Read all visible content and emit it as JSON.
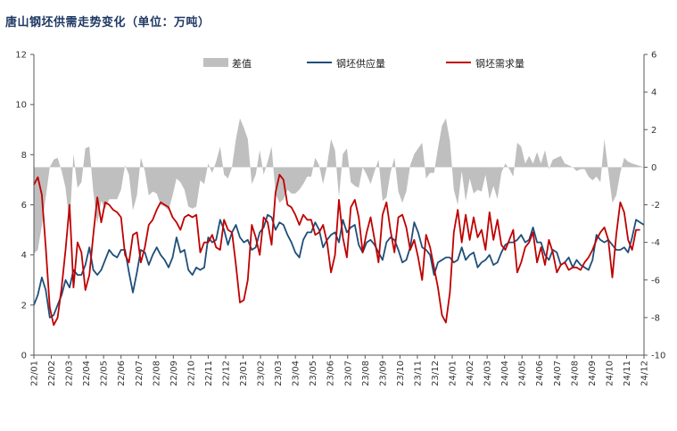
{
  "chart_data": {
    "type": "line",
    "title": "唐山钢坯供需走势变化（单位：万吨）",
    "legend": [
      "差值",
      "钢坯供应量",
      "钢坯需求量"
    ],
    "legend_position": "top",
    "colors": {
      "diff": "#bfbfbf",
      "supply": "#1f4e79",
      "demand": "#c00000"
    },
    "ylim_left": [
      0,
      12
    ],
    "yticks_left": [
      "0",
      "2",
      "4",
      "6",
      "8",
      "10",
      "12"
    ],
    "ylim_right": [
      -10,
      6
    ],
    "yticks_right": [
      "-10",
      "-8",
      "-6",
      "-4",
      "-2",
      "0",
      "2",
      "4",
      "6"
    ],
    "x_ticks": [
      "22/01",
      "22/02",
      "22/03",
      "22/04",
      "22/05",
      "22/06",
      "22/07",
      "22/08",
      "22/09",
      "22/10",
      "22/11",
      "22/12",
      "23/01",
      "23/02",
      "23/03",
      "23/04",
      "23/05",
      "23/06",
      "23/07",
      "23/08",
      "23/09",
      "23/10",
      "23/11",
      "23/12",
      "24/01",
      "24/02",
      "24/03",
      "24/04",
      "24/05",
      "24/06",
      "24/07",
      "24/08",
      "24/09",
      "24/10",
      "24/11",
      "24/12"
    ],
    "series": [
      {
        "name": "钢坯供应量",
        "axis": "left",
        "values": [
          2.0,
          2.4,
          3.1,
          2.6,
          1.5,
          1.6,
          2.0,
          2.4,
          3.0,
          2.7,
          3.4,
          3.2,
          3.2,
          3.6,
          4.3,
          3.4,
          3.2,
          3.4,
          3.8,
          4.2,
          4.0,
          3.9,
          4.2,
          4.2,
          3.3,
          2.5,
          3.3,
          4.2,
          4.1,
          3.6,
          4.0,
          4.3,
          4.0,
          3.8,
          3.5,
          3.9,
          4.7,
          4.1,
          4.2,
          3.4,
          3.2,
          3.5,
          3.4,
          3.5,
          4.7,
          4.5,
          4.6,
          5.4,
          5.0,
          4.4,
          4.9,
          5.2,
          4.7,
          4.5,
          4.6,
          4.2,
          4.3,
          4.9,
          5.1,
          5.6,
          5.5,
          5.0,
          5.3,
          5.2,
          4.8,
          4.5,
          4.1,
          3.9,
          4.6,
          4.9,
          4.9,
          5.3,
          5.0,
          4.3,
          4.6,
          4.8,
          4.9,
          4.5,
          5.4,
          4.9,
          5.1,
          5.2,
          4.4,
          4.1,
          4.5,
          4.6,
          4.4,
          4.1,
          3.8,
          4.5,
          4.7,
          4.6,
          4.2,
          3.7,
          3.8,
          4.3,
          5.3,
          4.9,
          4.3,
          4.2,
          4.0,
          3.2,
          3.7,
          3.8,
          3.9,
          3.9,
          3.7,
          3.8,
          4.3,
          3.8,
          4.0,
          4.1,
          3.5,
          3.7,
          3.8,
          4.0,
          3.6,
          3.7,
          4.1,
          4.4,
          4.5,
          4.5,
          4.6,
          4.8,
          4.5,
          4.6,
          5.1,
          4.5,
          4.5,
          4.0,
          3.8,
          4.2,
          4.1,
          3.6,
          3.7,
          3.9,
          3.5,
          3.8,
          3.6,
          3.5,
          3.4,
          3.8,
          4.8,
          4.6,
          4.5,
          4.6,
          4.4,
          4.2,
          4.2,
          4.3,
          4.1,
          4.7,
          5.4,
          5.3,
          5.2
        ]
      },
      {
        "name": "钢坯需求量",
        "axis": "left",
        "values": [
          6.8,
          7.1,
          6.4,
          4.3,
          1.9,
          1.2,
          1.5,
          2.7,
          4.2,
          6.0,
          2.7,
          4.5,
          4.1,
          2.6,
          3.2,
          4.8,
          6.3,
          5.3,
          6.1,
          6.0,
          5.8,
          5.7,
          5.5,
          4.0,
          3.7,
          4.8,
          4.9,
          3.7,
          4.3,
          5.2,
          5.4,
          5.8,
          6.1,
          6.0,
          5.9,
          5.5,
          5.3,
          5.0,
          5.5,
          5.6,
          5.5,
          5.6,
          4.1,
          4.5,
          4.5,
          4.8,
          4.3,
          4.2,
          5.4,
          5.0,
          4.9,
          3.6,
          2.1,
          2.2,
          3.0,
          5.2,
          4.7,
          4.0,
          5.5,
          5.3,
          4.4,
          6.5,
          7.2,
          7.0,
          6.0,
          5.9,
          5.6,
          5.2,
          5.6,
          5.4,
          5.4,
          4.8,
          4.9,
          5.2,
          4.5,
          3.3,
          4.0,
          6.2,
          4.7,
          3.9,
          5.9,
          6.2,
          5.5,
          4.1,
          4.9,
          5.5,
          4.6,
          3.7,
          5.6,
          6.1,
          5.0,
          4.1,
          5.5,
          5.6,
          5.1,
          4.2,
          4.6,
          3.9,
          3.0,
          4.8,
          4.3,
          3.5,
          2.7,
          1.6,
          1.3,
          2.5,
          4.9,
          5.8,
          4.5,
          5.6,
          4.6,
          5.5,
          4.7,
          5.0,
          4.2,
          5.7,
          4.6,
          5.4,
          4.4,
          4.2,
          4.6,
          5.0,
          3.3,
          3.7,
          4.3,
          4.5,
          4.9,
          3.7,
          4.3,
          3.6,
          4.6,
          4.1,
          3.3,
          3.6,
          3.7,
          3.4,
          3.5,
          3.5,
          3.4,
          3.7,
          3.9,
          4.2,
          4.6,
          4.9,
          5.1,
          4.6,
          3.1,
          4.8,
          6.1,
          5.7,
          4.6,
          4.2,
          5.0,
          5.0
        ]
      },
      {
        "name": "差值",
        "axis": "right",
        "values": [
          -4.6,
          -4.4,
          -3.1,
          -1.6,
          0.0,
          0.4,
          0.5,
          -0.2,
          -1.1,
          -3.1,
          0.7,
          -1.1,
          -0.8,
          1.0,
          1.1,
          -1.3,
          -3.0,
          -1.8,
          -2.2,
          -1.7,
          -1.7,
          -1.7,
          -1.2,
          0.1,
          -0.4,
          -2.3,
          -1.5,
          0.5,
          -0.2,
          -1.5,
          -1.3,
          -1.4,
          -2.0,
          -2.1,
          -2.3,
          -1.5,
          -0.6,
          -0.8,
          -1.2,
          -2.1,
          -2.2,
          -2.1,
          -0.7,
          -0.9,
          0.2,
          -0.3,
          0.3,
          1.1,
          -0.4,
          -0.6,
          0.0,
          1.5,
          2.6,
          2.1,
          1.5,
          -0.9,
          -0.4,
          0.9,
          -0.4,
          0.3,
          1.1,
          -1.4,
          -1.9,
          -1.7,
          -1.2,
          -1.4,
          -1.4,
          -1.2,
          -0.9,
          -0.5,
          -0.5,
          0.5,
          0.1,
          -0.9,
          0.1,
          1.5,
          0.9,
          -1.6,
          0.7,
          1.0,
          -0.8,
          -1.0,
          -1.1,
          0.0,
          -0.4,
          -0.9,
          -0.2,
          0.4,
          -1.8,
          -1.6,
          -0.3,
          0.5,
          -1.3,
          -1.9,
          -1.3,
          0.1,
          0.7,
          1.0,
          1.3,
          -0.6,
          -0.3,
          -0.3,
          1.0,
          2.2,
          2.6,
          1.4,
          -1.2,
          -2.0,
          -0.2,
          -1.8,
          -0.6,
          -1.4,
          -1.2,
          -1.3,
          -0.4,
          -1.7,
          -1.0,
          -1.7,
          -0.3,
          0.2,
          -0.1,
          -0.5,
          1.3,
          1.1,
          0.2,
          0.6,
          0.2,
          0.8,
          0.2,
          0.9,
          -0.1,
          0.4,
          0.5,
          0.6,
          0.2,
          0.1,
          0.0,
          -0.2,
          -0.1,
          -0.1,
          -0.5,
          -0.7,
          -0.5,
          -0.8,
          1.5,
          -0.2,
          -1.9,
          -1.5,
          -0.3,
          0.5,
          0.3,
          0.2
        ]
      }
    ]
  }
}
